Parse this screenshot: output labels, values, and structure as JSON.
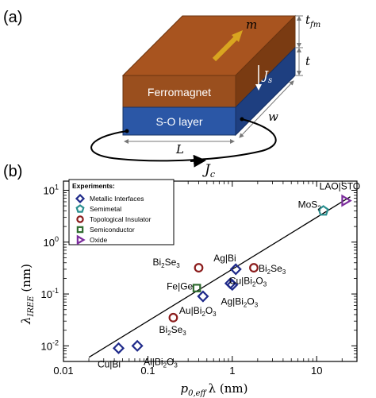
{
  "panel_a": {
    "label": "(a)",
    "layer_top": "Ferromagnet",
    "layer_bottom": "S-O layer",
    "m_label": "m",
    "js_label": "J",
    "js_sub": "s",
    "jc_label": "J",
    "jc_sub": "c",
    "tfm_label": "t",
    "tfm_sub": "fm",
    "t_label": "t",
    "w_label": "w",
    "l_label": "L",
    "colors": {
      "ferromagnet": "#9a4f1e",
      "so_layer": "#2b57a6",
      "arrow": "#d9a520"
    }
  },
  "panel_b": {
    "label": "(b)"
  },
  "legend": {
    "title": "Experiments:",
    "items": [
      {
        "label": "Metallic Interfaces",
        "marker": "diamond",
        "color": "#1f2a8a"
      },
      {
        "label": "Semimetal",
        "marker": "pentagon",
        "color": "#2a8f8f"
      },
      {
        "label": "Topological Insulator",
        "marker": "circle",
        "color": "#8b1c1c"
      },
      {
        "label": "Semiconductor",
        "marker": "square",
        "color": "#2f6b2f"
      },
      {
        "label": "Oxide",
        "marker": "triangle",
        "color": "#7b2c9c"
      }
    ]
  },
  "chart_data": {
    "type": "scatter",
    "x_scale": "log",
    "y_scale": "log",
    "xlim": [
      0.01,
      30
    ],
    "ylim": [
      0.005,
      15
    ],
    "xticks": [
      0.01,
      0.1,
      1,
      10
    ],
    "xtick_labels": [
      "0.01",
      "0.1",
      "1",
      "10"
    ],
    "yticks": [
      0.01,
      0.1,
      1,
      10
    ],
    "xlabel": {
      "main": "p",
      "sub": "0,eff",
      "tail": "λ (nm)"
    },
    "ylabel": {
      "main": "λ",
      "sub": "IREE",
      "tail": " (nm)"
    },
    "fit_line": {
      "x": [
        0.02,
        25
      ],
      "y": [
        0.006,
        7.5
      ]
    },
    "points": [
      {
        "x": 0.045,
        "y": 0.009,
        "category": "Metallic Interfaces",
        "label": "Cu|Bi"
      },
      {
        "x": 0.075,
        "y": 0.01,
        "category": "Metallic Interfaces",
        "label": "Al|Bi",
        "label_sub": "2",
        "label_tail": "O",
        "label_sub2": "3"
      },
      {
        "x": 0.45,
        "y": 0.09,
        "category": "Metallic Interfaces",
        "label": "Au|Bi",
        "label_sub": "2",
        "label_tail": "O",
        "label_sub2": "3"
      },
      {
        "x": 0.95,
        "y": 0.16,
        "category": "Metallic Interfaces",
        "label": "Ag|Bi",
        "label_sub": "2",
        "label_tail": "O",
        "label_sub2": "3"
      },
      {
        "x": 1.0,
        "y": 0.15,
        "category": "Metallic Interfaces",
        "label": "Cu|Bi",
        "label_sub": "2",
        "label_tail": "O",
        "label_sub2": "3"
      },
      {
        "x": 1.1,
        "y": 0.3,
        "category": "Metallic Interfaces",
        "label": "Ag|Bi"
      },
      {
        "x": 12,
        "y": 4.0,
        "category": "Semimetal",
        "label": "MoS",
        "label_sub": "2"
      },
      {
        "x": 0.4,
        "y": 0.32,
        "category": "Topological Insulator",
        "label": "Bi",
        "label_sub": "2",
        "label_tail": "Se",
        "label_sub2": "3"
      },
      {
        "x": 0.2,
        "y": 0.035,
        "category": "Topological Insulator",
        "label": "Bi",
        "label_sub": "2",
        "label_tail": "Se",
        "label_sub2": "3"
      },
      {
        "x": 1.8,
        "y": 0.32,
        "category": "Topological Insulator",
        "label": "Bi",
        "label_sub": "2",
        "label_tail": "Se",
        "label_sub2": "3"
      },
      {
        "x": 0.38,
        "y": 0.13,
        "category": "Semiconductor",
        "label": "Fe|Ge"
      },
      {
        "x": 22,
        "y": 6.3,
        "category": "Oxide",
        "label": "LAO|STO"
      }
    ]
  }
}
